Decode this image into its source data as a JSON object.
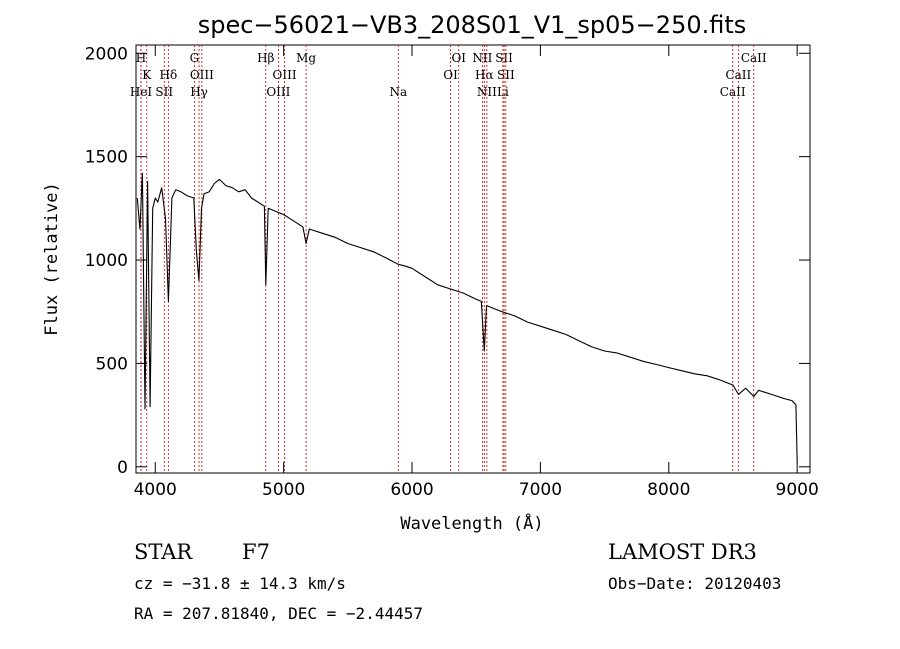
{
  "chart_data": {
    "type": "line",
    "title": "spec−56021−VB3_208S01_V1_sp05−250.fits",
    "xlabel": "Wavelength (Å)",
    "ylabel": "Flux (relative)",
    "xlim": [
      3850,
      9100
    ],
    "ylim": [
      -30,
      2040
    ],
    "xticks": [
      4000,
      5000,
      6000,
      7000,
      8000,
      9000
    ],
    "xtick_labels": [
      "4000",
      "5000",
      "6000",
      "7000",
      "8000",
      "9000"
    ],
    "yticks": [
      0,
      500,
      1000,
      1500,
      2000
    ],
    "ytick_labels": [
      "0",
      "500",
      "1000",
      "1500",
      "2000"
    ],
    "grid": false,
    "series": [
      {
        "name": "spectrum",
        "color": "#000000",
        "x": [
          3860,
          3880,
          3900,
          3920,
          3940,
          3960,
          3980,
          4000,
          4020,
          4050,
          4080,
          4102,
          4130,
          4160,
          4200,
          4250,
          4300,
          4320,
          4340,
          4360,
          4380,
          4420,
          4460,
          4500,
          4550,
          4600,
          4650,
          4700,
          4750,
          4800,
          4850,
          4861,
          4880,
          4920,
          4960,
          5000,
          5050,
          5100,
          5150,
          5175,
          5200,
          5250,
          5300,
          5400,
          5500,
          5600,
          5700,
          5800,
          5890,
          5950,
          6000,
          6100,
          6200,
          6300,
          6400,
          6500,
          6540,
          6563,
          6580,
          6620,
          6700,
          6800,
          6900,
          7000,
          7100,
          7200,
          7300,
          7400,
          7500,
          7600,
          7700,
          7800,
          7900,
          8000,
          8100,
          8200,
          8300,
          8400,
          8500,
          8542,
          8600,
          8662,
          8700,
          8800,
          8900,
          8960,
          8990,
          9000
        ],
        "values": [
          1300,
          1150,
          1420,
          280,
          1380,
          290,
          1250,
          1300,
          1280,
          1350,
          1200,
          800,
          1300,
          1340,
          1330,
          1310,
          1300,
          1050,
          900,
          1250,
          1320,
          1330,
          1370,
          1390,
          1360,
          1350,
          1330,
          1340,
          1300,
          1280,
          1260,
          880,
          1250,
          1240,
          1230,
          1220,
          1200,
          1180,
          1160,
          1080,
          1150,
          1140,
          1130,
          1110,
          1080,
          1060,
          1040,
          1010,
          980,
          970,
          960,
          920,
          880,
          860,
          840,
          810,
          800,
          560,
          780,
          770,
          750,
          730,
          700,
          680,
          660,
          640,
          610,
          580,
          560,
          550,
          530,
          510,
          495,
          480,
          465,
          450,
          440,
          420,
          395,
          350,
          380,
          340,
          370,
          350,
          330,
          320,
          300,
          20
        ]
      }
    ],
    "spectral_lines": [
      {
        "label": "H",
        "x": 3889,
        "row": 0
      },
      {
        "label": "K",
        "x": 3934,
        "row": 1
      },
      {
        "label": "Hd",
        "x": 4102,
        "row": 1
      },
      {
        "label": "HeI",
        "x": 3889,
        "row": 2
      },
      {
        "label": "SII",
        "x": 4070,
        "row": 2
      },
      {
        "label": "G",
        "x": 4305,
        "row": 0
      },
      {
        "label": "OIII",
        "x": 4363,
        "row": 1
      },
      {
        "label": "Hg",
        "x": 4341,
        "row": 2
      },
      {
        "label": "Hb",
        "x": 4861,
        "row": 0
      },
      {
        "label": "OIII",
        "x": 5007,
        "row": 1
      },
      {
        "label": "OIII",
        "x": 4959,
        "row": 2
      },
      {
        "label": "Mg",
        "x": 5175,
        "row": 0
      },
      {
        "label": "Na",
        "x": 5893,
        "row": 2
      },
      {
        "label": "OI",
        "x": 6364,
        "row": 0
      },
      {
        "label": "OI",
        "x": 6300,
        "row": 1
      },
      {
        "label": "NII",
        "x": 6548,
        "row": 0
      },
      {
        "label": "SII",
        "x": 6717,
        "row": 0
      },
      {
        "label": "Ha",
        "x": 6563,
        "row": 1
      },
      {
        "label": "SII",
        "x": 6731,
        "row": 1
      },
      {
        "label": "NII",
        "x": 6583,
        "row": 2
      },
      {
        "label": "Li",
        "x": 6708,
        "row": 2
      },
      {
        "label": "CaII",
        "x": 8662,
        "row": 0
      },
      {
        "label": "CaII",
        "x": 8542,
        "row": 1
      },
      {
        "label": "CaII",
        "x": 8498,
        "row": 2
      }
    ],
    "line_color": "#cc0000"
  },
  "info": {
    "object_type": "STAR",
    "subclass": "F7",
    "survey": "LAMOST DR3",
    "redshift": "cz = −31.8 ± 14.3 km/s",
    "obs_date": "Obs−Date: 20120403",
    "coords": "RA = 207.81840, DEC =  −2.44457"
  }
}
